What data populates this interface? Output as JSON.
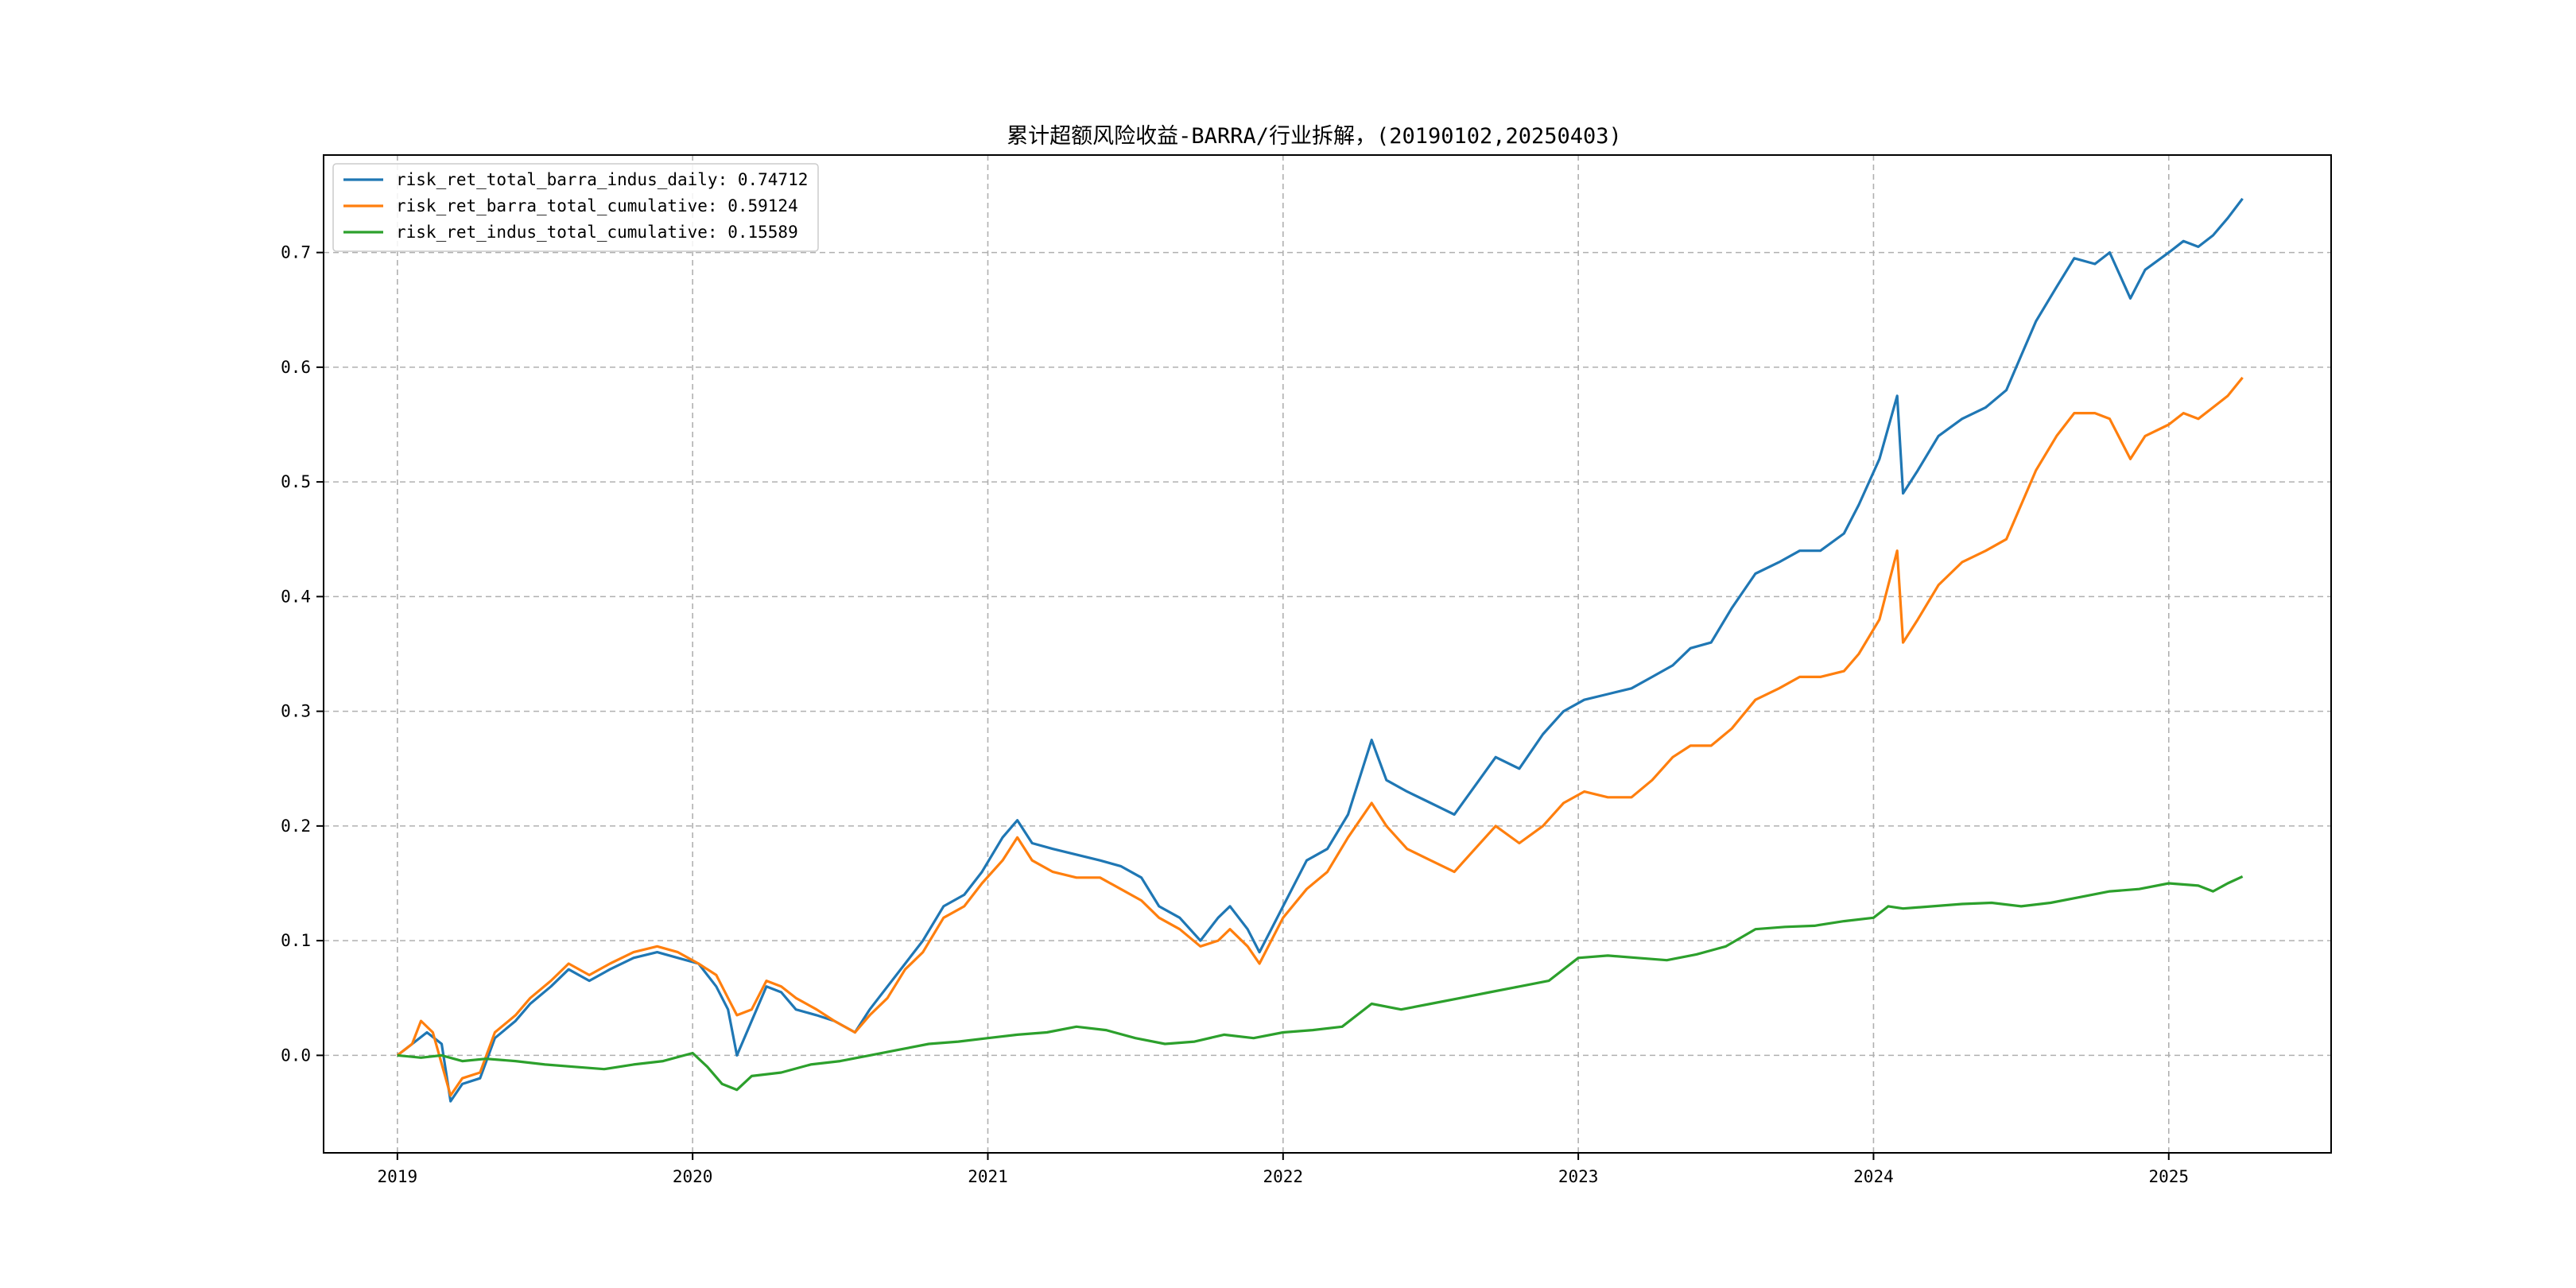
{
  "chart_data": {
    "type": "line",
    "title": "累计超额风险收益-BARRA/行业拆解，(20190102,20250403)",
    "xlabel": "",
    "ylabel": "",
    "xlim": [
      2018.75,
      2025.55
    ],
    "ylim": [
      -0.085,
      0.785
    ],
    "x_ticks": [
      2019,
      2020,
      2021,
      2022,
      2023,
      2024,
      2025
    ],
    "x_tick_labels": [
      "2019",
      "2020",
      "2021",
      "2022",
      "2023",
      "2024",
      "2025"
    ],
    "y_ticks": [
      0.0,
      0.1,
      0.2,
      0.3,
      0.4,
      0.5,
      0.6,
      0.7
    ],
    "y_tick_labels": [
      "0.0",
      "0.1",
      "0.2",
      "0.3",
      "0.4",
      "0.5",
      "0.6",
      "0.7"
    ],
    "grid": true,
    "legend_position": "top-left",
    "series": [
      {
        "name": "risk_ret_total_barra_indus_daily: 0.74712",
        "color": "#1f77b4",
        "points": [
          [
            2019.0,
            0.0
          ],
          [
            2019.05,
            0.01
          ],
          [
            2019.1,
            0.02
          ],
          [
            2019.15,
            0.01
          ],
          [
            2019.18,
            -0.04
          ],
          [
            2019.22,
            -0.025
          ],
          [
            2019.28,
            -0.02
          ],
          [
            2019.33,
            0.015
          ],
          [
            2019.4,
            0.03
          ],
          [
            2019.45,
            0.045
          ],
          [
            2019.52,
            0.06
          ],
          [
            2019.58,
            0.075
          ],
          [
            2019.65,
            0.065
          ],
          [
            2019.72,
            0.075
          ],
          [
            2019.8,
            0.085
          ],
          [
            2019.88,
            0.09
          ],
          [
            2019.95,
            0.085
          ],
          [
            2020.02,
            0.08
          ],
          [
            2020.08,
            0.06
          ],
          [
            2020.12,
            0.04
          ],
          [
            2020.15,
            0.0
          ],
          [
            2020.2,
            0.03
          ],
          [
            2020.25,
            0.06
          ],
          [
            2020.3,
            0.055
          ],
          [
            2020.35,
            0.04
          ],
          [
            2020.42,
            0.035
          ],
          [
            2020.48,
            0.03
          ],
          [
            2020.55,
            0.02
          ],
          [
            2020.6,
            0.04
          ],
          [
            2020.66,
            0.06
          ],
          [
            2020.72,
            0.08
          ],
          [
            2020.78,
            0.1
          ],
          [
            2020.85,
            0.13
          ],
          [
            2020.92,
            0.14
          ],
          [
            2020.98,
            0.16
          ],
          [
            2021.05,
            0.19
          ],
          [
            2021.1,
            0.205
          ],
          [
            2021.15,
            0.185
          ],
          [
            2021.22,
            0.18
          ],
          [
            2021.3,
            0.175
          ],
          [
            2021.38,
            0.17
          ],
          [
            2021.45,
            0.165
          ],
          [
            2021.52,
            0.155
          ],
          [
            2021.58,
            0.13
          ],
          [
            2021.65,
            0.12
          ],
          [
            2021.72,
            0.1
          ],
          [
            2021.78,
            0.12
          ],
          [
            2021.82,
            0.13
          ],
          [
            2021.88,
            0.11
          ],
          [
            2021.92,
            0.09
          ],
          [
            2022.0,
            0.13
          ],
          [
            2022.08,
            0.17
          ],
          [
            2022.15,
            0.18
          ],
          [
            2022.22,
            0.21
          ],
          [
            2022.3,
            0.275
          ],
          [
            2022.35,
            0.24
          ],
          [
            2022.42,
            0.23
          ],
          [
            2022.5,
            0.22
          ],
          [
            2022.58,
            0.21
          ],
          [
            2022.65,
            0.235
          ],
          [
            2022.72,
            0.26
          ],
          [
            2022.8,
            0.25
          ],
          [
            2022.88,
            0.28
          ],
          [
            2022.95,
            0.3
          ],
          [
            2023.02,
            0.31
          ],
          [
            2023.1,
            0.315
          ],
          [
            2023.18,
            0.32
          ],
          [
            2023.25,
            0.33
          ],
          [
            2023.32,
            0.34
          ],
          [
            2023.38,
            0.355
          ],
          [
            2023.45,
            0.36
          ],
          [
            2023.52,
            0.39
          ],
          [
            2023.6,
            0.42
          ],
          [
            2023.68,
            0.43
          ],
          [
            2023.75,
            0.44
          ],
          [
            2023.82,
            0.44
          ],
          [
            2023.9,
            0.455
          ],
          [
            2023.95,
            0.48
          ],
          [
            2024.02,
            0.52
          ],
          [
            2024.08,
            0.575
          ],
          [
            2024.1,
            0.49
          ],
          [
            2024.15,
            0.51
          ],
          [
            2024.22,
            0.54
          ],
          [
            2024.3,
            0.555
          ],
          [
            2024.38,
            0.565
          ],
          [
            2024.45,
            0.58
          ],
          [
            2024.5,
            0.61
          ],
          [
            2024.55,
            0.64
          ],
          [
            2024.62,
            0.67
          ],
          [
            2024.68,
            0.695
          ],
          [
            2024.75,
            0.69
          ],
          [
            2024.8,
            0.7
          ],
          [
            2024.87,
            0.66
          ],
          [
            2024.92,
            0.685
          ],
          [
            2025.0,
            0.7
          ],
          [
            2025.05,
            0.71
          ],
          [
            2025.1,
            0.705
          ],
          [
            2025.15,
            0.715
          ],
          [
            2025.2,
            0.73
          ],
          [
            2025.25,
            0.747
          ]
        ]
      },
      {
        "name": "risk_ret_barra_total_cumulative: 0.59124",
        "color": "#ff7f0e",
        "points": [
          [
            2019.0,
            0.0
          ],
          [
            2019.05,
            0.01
          ],
          [
            2019.08,
            0.03
          ],
          [
            2019.12,
            0.02
          ],
          [
            2019.18,
            -0.035
          ],
          [
            2019.22,
            -0.02
          ],
          [
            2019.28,
            -0.015
          ],
          [
            2019.33,
            0.02
          ],
          [
            2019.4,
            0.035
          ],
          [
            2019.45,
            0.05
          ],
          [
            2019.52,
            0.065
          ],
          [
            2019.58,
            0.08
          ],
          [
            2019.65,
            0.07
          ],
          [
            2019.72,
            0.08
          ],
          [
            2019.8,
            0.09
          ],
          [
            2019.88,
            0.095
          ],
          [
            2019.95,
            0.09
          ],
          [
            2020.02,
            0.08
          ],
          [
            2020.08,
            0.07
          ],
          [
            2020.12,
            0.05
          ],
          [
            2020.15,
            0.035
          ],
          [
            2020.2,
            0.04
          ],
          [
            2020.25,
            0.065
          ],
          [
            2020.3,
            0.06
          ],
          [
            2020.35,
            0.05
          ],
          [
            2020.42,
            0.04
          ],
          [
            2020.48,
            0.03
          ],
          [
            2020.55,
            0.02
          ],
          [
            2020.6,
            0.035
          ],
          [
            2020.66,
            0.05
          ],
          [
            2020.72,
            0.075
          ],
          [
            2020.78,
            0.09
          ],
          [
            2020.85,
            0.12
          ],
          [
            2020.92,
            0.13
          ],
          [
            2020.98,
            0.15
          ],
          [
            2021.05,
            0.17
          ],
          [
            2021.1,
            0.19
          ],
          [
            2021.15,
            0.17
          ],
          [
            2021.22,
            0.16
          ],
          [
            2021.3,
            0.155
          ],
          [
            2021.38,
            0.155
          ],
          [
            2021.45,
            0.145
          ],
          [
            2021.52,
            0.135
          ],
          [
            2021.58,
            0.12
          ],
          [
            2021.65,
            0.11
          ],
          [
            2021.72,
            0.095
          ],
          [
            2021.78,
            0.1
          ],
          [
            2021.82,
            0.11
          ],
          [
            2021.88,
            0.095
          ],
          [
            2021.92,
            0.08
          ],
          [
            2022.0,
            0.12
          ],
          [
            2022.08,
            0.145
          ],
          [
            2022.15,
            0.16
          ],
          [
            2022.22,
            0.19
          ],
          [
            2022.3,
            0.22
          ],
          [
            2022.35,
            0.2
          ],
          [
            2022.42,
            0.18
          ],
          [
            2022.5,
            0.17
          ],
          [
            2022.58,
            0.16
          ],
          [
            2022.65,
            0.18
          ],
          [
            2022.72,
            0.2
          ],
          [
            2022.8,
            0.185
          ],
          [
            2022.88,
            0.2
          ],
          [
            2022.95,
            0.22
          ],
          [
            2023.02,
            0.23
          ],
          [
            2023.1,
            0.225
          ],
          [
            2023.18,
            0.225
          ],
          [
            2023.25,
            0.24
          ],
          [
            2023.32,
            0.26
          ],
          [
            2023.38,
            0.27
          ],
          [
            2023.45,
            0.27
          ],
          [
            2023.52,
            0.285
          ],
          [
            2023.6,
            0.31
          ],
          [
            2023.68,
            0.32
          ],
          [
            2023.75,
            0.33
          ],
          [
            2023.82,
            0.33
          ],
          [
            2023.9,
            0.335
          ],
          [
            2023.95,
            0.35
          ],
          [
            2024.02,
            0.38
          ],
          [
            2024.08,
            0.44
          ],
          [
            2024.1,
            0.36
          ],
          [
            2024.15,
            0.38
          ],
          [
            2024.22,
            0.41
          ],
          [
            2024.3,
            0.43
          ],
          [
            2024.38,
            0.44
          ],
          [
            2024.45,
            0.45
          ],
          [
            2024.5,
            0.48
          ],
          [
            2024.55,
            0.51
          ],
          [
            2024.62,
            0.54
          ],
          [
            2024.68,
            0.56
          ],
          [
            2024.75,
            0.56
          ],
          [
            2024.8,
            0.555
          ],
          [
            2024.87,
            0.52
          ],
          [
            2024.92,
            0.54
          ],
          [
            2025.0,
            0.55
          ],
          [
            2025.05,
            0.56
          ],
          [
            2025.1,
            0.555
          ],
          [
            2025.15,
            0.565
          ],
          [
            2025.2,
            0.575
          ],
          [
            2025.25,
            0.591
          ]
        ]
      },
      {
        "name": "risk_ret_indus_total_cumulative: 0.15589",
        "color": "#2ca02c",
        "points": [
          [
            2019.0,
            0.0
          ],
          [
            2019.08,
            -0.002
          ],
          [
            2019.15,
            0.0
          ],
          [
            2019.22,
            -0.005
          ],
          [
            2019.3,
            -0.003
          ],
          [
            2019.4,
            -0.005
          ],
          [
            2019.5,
            -0.008
          ],
          [
            2019.6,
            -0.01
          ],
          [
            2019.7,
            -0.012
          ],
          [
            2019.8,
            -0.008
          ],
          [
            2019.9,
            -0.005
          ],
          [
            2020.0,
            0.002
          ],
          [
            2020.05,
            -0.01
          ],
          [
            2020.1,
            -0.025
          ],
          [
            2020.15,
            -0.03
          ],
          [
            2020.2,
            -0.018
          ],
          [
            2020.3,
            -0.015
          ],
          [
            2020.4,
            -0.008
          ],
          [
            2020.5,
            -0.005
          ],
          [
            2020.6,
            0.0
          ],
          [
            2020.7,
            0.005
          ],
          [
            2020.8,
            0.01
          ],
          [
            2020.9,
            0.012
          ],
          [
            2021.0,
            0.015
          ],
          [
            2021.1,
            0.018
          ],
          [
            2021.2,
            0.02
          ],
          [
            2021.3,
            0.025
          ],
          [
            2021.4,
            0.022
          ],
          [
            2021.5,
            0.015
          ],
          [
            2021.6,
            0.01
          ],
          [
            2021.7,
            0.012
          ],
          [
            2021.8,
            0.018
          ],
          [
            2021.9,
            0.015
          ],
          [
            2022.0,
            0.02
          ],
          [
            2022.1,
            0.022
          ],
          [
            2022.2,
            0.025
          ],
          [
            2022.3,
            0.045
          ],
          [
            2022.4,
            0.04
          ],
          [
            2022.5,
            0.045
          ],
          [
            2022.6,
            0.05
          ],
          [
            2022.7,
            0.055
          ],
          [
            2022.8,
            0.06
          ],
          [
            2022.9,
            0.065
          ],
          [
            2023.0,
            0.085
          ],
          [
            2023.1,
            0.087
          ],
          [
            2023.2,
            0.085
          ],
          [
            2023.3,
            0.083
          ],
          [
            2023.4,
            0.088
          ],
          [
            2023.5,
            0.095
          ],
          [
            2023.6,
            0.11
          ],
          [
            2023.7,
            0.112
          ],
          [
            2023.8,
            0.113
          ],
          [
            2023.9,
            0.117
          ],
          [
            2024.0,
            0.12
          ],
          [
            2024.05,
            0.13
          ],
          [
            2024.1,
            0.128
          ],
          [
            2024.2,
            0.13
          ],
          [
            2024.3,
            0.132
          ],
          [
            2024.4,
            0.133
          ],
          [
            2024.5,
            0.13
          ],
          [
            2024.6,
            0.133
          ],
          [
            2024.7,
            0.138
          ],
          [
            2024.8,
            0.143
          ],
          [
            2024.9,
            0.145
          ],
          [
            2025.0,
            0.15
          ],
          [
            2025.1,
            0.148
          ],
          [
            2025.15,
            0.143
          ],
          [
            2025.2,
            0.15
          ],
          [
            2025.25,
            0.156
          ]
        ]
      }
    ]
  }
}
